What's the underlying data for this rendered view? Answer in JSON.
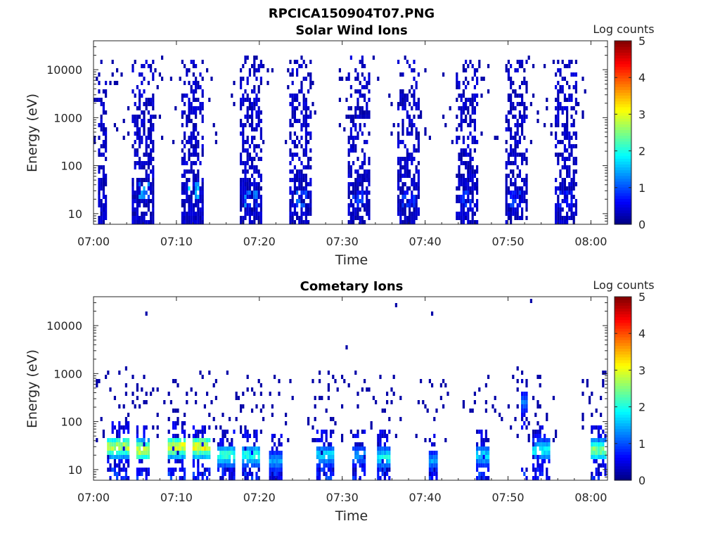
{
  "figure": {
    "title": "RPCICA150904T07.PNG"
  },
  "chart_data": [
    {
      "type": "heatmap",
      "title": "Solar Wind Ions",
      "xlabel": "Time",
      "ylabel": "Energy (eV)",
      "y_scale": "log",
      "xlim": [
        "07:00",
        "08:02"
      ],
      "ylim": [
        6,
        40000
      ],
      "x_ticks": [
        "07:00",
        "07:10",
        "07:20",
        "07:30",
        "07:40",
        "07:50",
        "08:00"
      ],
      "y_ticks": [
        "10",
        "100",
        "1000",
        "10000"
      ],
      "colorbar": {
        "label": "Log counts",
        "range": [
          0,
          5
        ],
        "ticks": [
          "0",
          "1",
          "2",
          "3",
          "4",
          "5"
        ],
        "colormap": "jet"
      },
      "grid": false,
      "bursts": [
        {
          "center": "07:01",
          "width_min": 1.0,
          "e_min": 6,
          "e_max": 15000,
          "peak_log_counts": 0.6
        },
        {
          "center": "07:06",
          "width_min": 2.8,
          "e_min": 6,
          "e_max": 15000,
          "peak_log_counts": 1.6,
          "peak_energy": 30
        },
        {
          "center": "07:12",
          "width_min": 2.8,
          "e_min": 6,
          "e_max": 15000,
          "peak_log_counts": 1.8,
          "peak_energy": 30
        },
        {
          "center": "07:19",
          "width_min": 2.8,
          "e_min": 6,
          "e_max": 20000,
          "peak_log_counts": 1.4,
          "peak_energy": 22
        },
        {
          "center": "07:25",
          "width_min": 2.8,
          "e_min": 6,
          "e_max": 15000,
          "peak_log_counts": 1.3,
          "peak_energy": 22
        },
        {
          "center": "07:32",
          "width_min": 2.8,
          "e_min": 6,
          "e_max": 20000,
          "peak_log_counts": 1.1,
          "peak_energy": 20
        },
        {
          "center": "07:38",
          "width_min": 2.8,
          "e_min": 6,
          "e_max": 15000,
          "peak_log_counts": 1.0,
          "peak_energy": 20
        },
        {
          "center": "07:45",
          "width_min": 2.8,
          "e_min": 6,
          "e_max": 15000,
          "peak_log_counts": 1.0,
          "peak_energy": 20
        },
        {
          "center": "07:51",
          "width_min": 2.8,
          "e_min": 6,
          "e_max": 15000,
          "peak_log_counts": 1.0,
          "peak_energy": 20
        },
        {
          "center": "07:57",
          "width_min": 2.8,
          "e_min": 6,
          "e_max": 15000,
          "peak_log_counts": 0.9,
          "peak_energy": 20
        }
      ]
    },
    {
      "type": "heatmap",
      "title": "Cometary Ions",
      "xlabel": "Time",
      "ylabel": "Energy (eV)",
      "y_scale": "log",
      "xlim": [
        "07:00",
        "08:02"
      ],
      "ylim": [
        6,
        40000
      ],
      "x_ticks": [
        "07:00",
        "07:10",
        "07:20",
        "07:30",
        "07:40",
        "07:50",
        "08:00"
      ],
      "y_ticks": [
        "10",
        "100",
        "1000",
        "10000"
      ],
      "colorbar": {
        "label": "Log counts",
        "range": [
          0,
          5
        ],
        "ticks": [
          "0",
          "1",
          "2",
          "3",
          "4",
          "5"
        ],
        "colormap": "jet"
      },
      "grid": false,
      "bursts": [
        {
          "center": "07:03",
          "width_min": 2.5,
          "peak_energy": 30,
          "peak_log_counts": 3.3
        },
        {
          "center": "07:06",
          "width_min": 1.5,
          "peak_energy": 25,
          "peak_log_counts": 3.5
        },
        {
          "center": "07:10",
          "width_min": 2.0,
          "peak_energy": 30,
          "peak_log_counts": 3.6
        },
        {
          "center": "07:13",
          "width_min": 2.0,
          "peak_energy": 30,
          "peak_log_counts": 3.7
        },
        {
          "center": "07:16",
          "width_min": 2.0,
          "peak_energy": 20,
          "peak_log_counts": 2.5
        },
        {
          "center": "07:19",
          "width_min": 2.0,
          "peak_energy": 20,
          "peak_log_counts": 2.4
        },
        {
          "center": "07:22",
          "width_min": 1.5,
          "peak_energy": 15,
          "peak_log_counts": 1.6
        },
        {
          "center": "07:28",
          "width_min": 2.0,
          "peak_energy": 20,
          "peak_log_counts": 2.0
        },
        {
          "center": "07:32",
          "width_min": 1.5,
          "peak_energy": 20,
          "peak_log_counts": 1.6
        },
        {
          "center": "07:35",
          "width_min": 1.5,
          "peak_energy": 18,
          "peak_log_counts": 2.2
        },
        {
          "center": "07:41",
          "width_min": 1.2,
          "peak_energy": 15,
          "peak_log_counts": 1.6
        },
        {
          "center": "07:47",
          "width_min": 1.8,
          "peak_energy": 20,
          "peak_log_counts": 2.0
        },
        {
          "center": "07:52",
          "width_min": 1.0,
          "peak_energy": 250,
          "peak_log_counts": 1.4
        },
        {
          "center": "07:54",
          "width_min": 2.0,
          "peak_energy": 25,
          "peak_log_counts": 2.2
        },
        {
          "center": "08:01",
          "width_min": 1.8,
          "peak_energy": 25,
          "peak_log_counts": 3.0
        }
      ]
    }
  ]
}
